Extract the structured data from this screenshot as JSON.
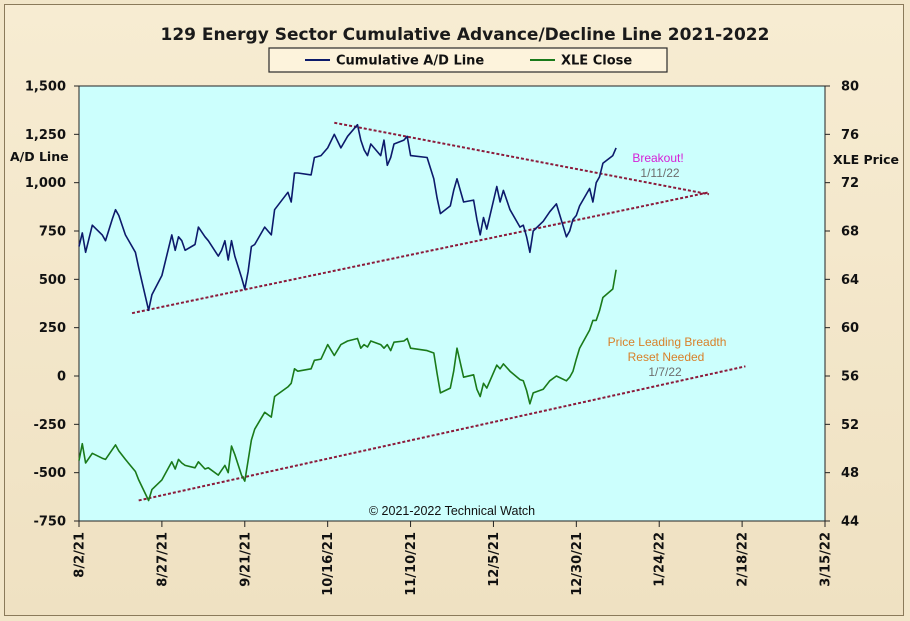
{
  "colors": {
    "plot_bg": "#ccfffd",
    "ad_line": "#0d1a6b",
    "xle_line": "#1a7a1a",
    "trend": "#8b1a3a",
    "breakout": "#d61fd6",
    "date_gray": "#6e6e6e",
    "price_leading": "#d8802a"
  },
  "chart_data": {
    "type": "line",
    "title": "129 Energy Sector Cumulative Advance/Decline Line 2021-2022",
    "ylabel": "A/D Line",
    "y2label": "XLE Price",
    "ylim": [
      -750,
      1500
    ],
    "y2lim": [
      44,
      80
    ],
    "yticks": [
      "1,500",
      "1,250",
      "1,000",
      "750",
      "500",
      "250",
      "0",
      "-250",
      "-500",
      "-750"
    ],
    "y2ticks": [
      "80",
      "76",
      "72",
      "68",
      "64",
      "60",
      "56",
      "52",
      "48",
      "44"
    ],
    "xticks": [
      "8/2/21",
      "8/27/21",
      "9/21/21",
      "10/16/21",
      "11/10/21",
      "12/5/21",
      "12/30/21",
      "1/24/22",
      "2/18/22",
      "3/15/22"
    ],
    "xlim": [
      "2021-08-02",
      "2022-03-15"
    ],
    "grid": false,
    "legend_position": "top-center",
    "copyright": "© 2021-2022  Technical Watch",
    "series": [
      {
        "name": "Cumulative A/D Line",
        "axis": "left",
        "points": [
          [
            "2021-08-02",
            670
          ],
          [
            "2021-08-03",
            740
          ],
          [
            "2021-08-04",
            640
          ],
          [
            "2021-08-06",
            780
          ],
          [
            "2021-08-09",
            730
          ],
          [
            "2021-08-10",
            700
          ],
          [
            "2021-08-12",
            810
          ],
          [
            "2021-08-13",
            860
          ],
          [
            "2021-08-14",
            830
          ],
          [
            "2021-08-16",
            730
          ],
          [
            "2021-08-19",
            640
          ],
          [
            "2021-08-20",
            560
          ],
          [
            "2021-08-23",
            340
          ],
          [
            "2021-08-24",
            420
          ],
          [
            "2021-08-27",
            520
          ],
          [
            "2021-08-30",
            730
          ],
          [
            "2021-08-31",
            650
          ],
          [
            "2021-09-01",
            720
          ],
          [
            "2021-09-02",
            700
          ],
          [
            "2021-09-03",
            650
          ],
          [
            "2021-09-06",
            680
          ],
          [
            "2021-09-07",
            770
          ],
          [
            "2021-09-09",
            720
          ],
          [
            "2021-09-10",
            700
          ],
          [
            "2021-09-13",
            620
          ],
          [
            "2021-09-14",
            650
          ],
          [
            "2021-09-15",
            700
          ],
          [
            "2021-09-16",
            600
          ],
          [
            "2021-09-17",
            700
          ],
          [
            "2021-09-18",
            620
          ],
          [
            "2021-09-20",
            510
          ],
          [
            "2021-09-21",
            450
          ],
          [
            "2021-09-22",
            540
          ],
          [
            "2021-09-23",
            670
          ],
          [
            "2021-09-24",
            680
          ],
          [
            "2021-09-27",
            770
          ],
          [
            "2021-09-29",
            730
          ],
          [
            "2021-09-30",
            860
          ],
          [
            "2021-10-04",
            950
          ],
          [
            "2021-10-05",
            900
          ],
          [
            "2021-10-06",
            1050
          ],
          [
            "2021-10-07",
            1050
          ],
          [
            "2021-10-11",
            1040
          ],
          [
            "2021-10-12",
            1130
          ],
          [
            "2021-10-14",
            1140
          ],
          [
            "2021-10-16",
            1180
          ],
          [
            "2021-10-18",
            1250
          ],
          [
            "2021-10-20",
            1180
          ],
          [
            "2021-10-22",
            1240
          ],
          [
            "2021-10-25",
            1300
          ],
          [
            "2021-10-26",
            1220
          ],
          [
            "2021-10-27",
            1170
          ],
          [
            "2021-10-28",
            1140
          ],
          [
            "2021-10-29",
            1200
          ],
          [
            "2021-11-01",
            1140
          ],
          [
            "2021-11-02",
            1220
          ],
          [
            "2021-11-03",
            1090
          ],
          [
            "2021-11-04",
            1130
          ],
          [
            "2021-11-05",
            1200
          ],
          [
            "2021-11-08",
            1220
          ],
          [
            "2021-11-09",
            1240
          ],
          [
            "2021-11-10",
            1140
          ],
          [
            "2021-11-15",
            1130
          ],
          [
            "2021-11-17",
            1020
          ],
          [
            "2021-11-18",
            920
          ],
          [
            "2021-11-19",
            840
          ],
          [
            "2021-11-22",
            880
          ],
          [
            "2021-11-23",
            960
          ],
          [
            "2021-11-24",
            1020
          ],
          [
            "2021-11-26",
            900
          ],
          [
            "2021-11-29",
            910
          ],
          [
            "2021-11-30",
            810
          ],
          [
            "2021-12-01",
            730
          ],
          [
            "2021-12-02",
            820
          ],
          [
            "2021-12-03",
            760
          ],
          [
            "2021-12-06",
            980
          ],
          [
            "2021-12-07",
            900
          ],
          [
            "2021-12-08",
            960
          ],
          [
            "2021-12-10",
            860
          ],
          [
            "2021-12-13",
            770
          ],
          [
            "2021-12-14",
            780
          ],
          [
            "2021-12-15",
            720
          ],
          [
            "2021-12-16",
            640
          ],
          [
            "2021-12-17",
            750
          ],
          [
            "2021-12-20",
            800
          ],
          [
            "2021-12-22",
            850
          ],
          [
            "2021-12-24",
            890
          ],
          [
            "2021-12-27",
            720
          ],
          [
            "2021-12-28",
            750
          ],
          [
            "2021-12-29",
            810
          ],
          [
            "2021-12-30",
            830
          ],
          [
            "2021-12-31",
            880
          ],
          [
            "2022-01-03",
            970
          ],
          [
            "2022-01-04",
            900
          ],
          [
            "2022-01-05",
            1000
          ],
          [
            "2022-01-06",
            1030
          ],
          [
            "2022-01-07",
            1100
          ],
          [
            "2022-01-10",
            1140
          ],
          [
            "2022-01-11",
            1180
          ]
        ]
      },
      {
        "name": "XLE Close",
        "axis": "right",
        "points": [
          [
            "2021-08-02",
            49.0
          ],
          [
            "2021-08-03",
            50.4
          ],
          [
            "2021-08-04",
            48.8
          ],
          [
            "2021-08-06",
            49.6
          ],
          [
            "2021-08-09",
            49.2
          ],
          [
            "2021-08-10",
            49.1
          ],
          [
            "2021-08-12",
            49.9
          ],
          [
            "2021-08-13",
            50.3
          ],
          [
            "2021-08-14",
            49.8
          ],
          [
            "2021-08-16",
            49.1
          ],
          [
            "2021-08-19",
            48.1
          ],
          [
            "2021-08-20",
            47.4
          ],
          [
            "2021-08-23",
            45.7
          ],
          [
            "2021-08-24",
            46.6
          ],
          [
            "2021-08-27",
            47.4
          ],
          [
            "2021-08-30",
            48.9
          ],
          [
            "2021-08-31",
            48.3
          ],
          [
            "2021-09-01",
            49.1
          ],
          [
            "2021-09-02",
            48.8
          ],
          [
            "2021-09-03",
            48.6
          ],
          [
            "2021-09-06",
            48.4
          ],
          [
            "2021-09-07",
            48.9
          ],
          [
            "2021-09-09",
            48.3
          ],
          [
            "2021-09-10",
            48.4
          ],
          [
            "2021-09-13",
            47.8
          ],
          [
            "2021-09-14",
            48.2
          ],
          [
            "2021-09-15",
            48.6
          ],
          [
            "2021-09-16",
            48.0
          ],
          [
            "2021-09-17",
            50.2
          ],
          [
            "2021-09-18",
            49.5
          ],
          [
            "2021-09-20",
            47.8
          ],
          [
            "2021-09-21",
            47.3
          ],
          [
            "2021-09-22",
            49.0
          ],
          [
            "2021-09-23",
            50.7
          ],
          [
            "2021-09-24",
            51.6
          ],
          [
            "2021-09-27",
            53.0
          ],
          [
            "2021-09-29",
            52.6
          ],
          [
            "2021-09-30",
            54.3
          ],
          [
            "2021-10-04",
            55.1
          ],
          [
            "2021-10-05",
            55.4
          ],
          [
            "2021-10-06",
            56.6
          ],
          [
            "2021-10-07",
            56.4
          ],
          [
            "2021-10-11",
            56.6
          ],
          [
            "2021-10-12",
            57.3
          ],
          [
            "2021-10-14",
            57.4
          ],
          [
            "2021-10-16",
            58.6
          ],
          [
            "2021-10-18",
            57.7
          ],
          [
            "2021-10-20",
            58.6
          ],
          [
            "2021-10-22",
            58.9
          ],
          [
            "2021-10-25",
            59.1
          ],
          [
            "2021-10-26",
            58.3
          ],
          [
            "2021-10-27",
            58.6
          ],
          [
            "2021-10-28",
            58.4
          ],
          [
            "2021-10-29",
            58.9
          ],
          [
            "2021-11-01",
            58.6
          ],
          [
            "2021-11-02",
            58.3
          ],
          [
            "2021-11-03",
            58.6
          ],
          [
            "2021-11-04",
            58.1
          ],
          [
            "2021-11-05",
            58.8
          ],
          [
            "2021-11-08",
            58.9
          ],
          [
            "2021-11-09",
            59.1
          ],
          [
            "2021-11-10",
            58.3
          ],
          [
            "2021-11-15",
            58.1
          ],
          [
            "2021-11-17",
            57.9
          ],
          [
            "2021-11-18",
            56.2
          ],
          [
            "2021-11-19",
            54.6
          ],
          [
            "2021-11-22",
            55.0
          ],
          [
            "2021-11-23",
            56.4
          ],
          [
            "2021-11-24",
            58.3
          ],
          [
            "2021-11-26",
            55.9
          ],
          [
            "2021-11-29",
            56.1
          ],
          [
            "2021-11-30",
            54.9
          ],
          [
            "2021-12-01",
            54.3
          ],
          [
            "2021-12-02",
            55.4
          ],
          [
            "2021-12-03",
            55.0
          ],
          [
            "2021-12-06",
            56.9
          ],
          [
            "2021-12-07",
            56.6
          ],
          [
            "2021-12-08",
            57.0
          ],
          [
            "2021-12-10",
            56.4
          ],
          [
            "2021-12-13",
            55.7
          ],
          [
            "2021-12-14",
            55.6
          ],
          [
            "2021-12-15",
            54.8
          ],
          [
            "2021-12-16",
            53.7
          ],
          [
            "2021-12-17",
            54.6
          ],
          [
            "2021-12-20",
            54.9
          ],
          [
            "2021-12-22",
            55.6
          ],
          [
            "2021-12-24",
            56.0
          ],
          [
            "2021-12-27",
            55.6
          ],
          [
            "2021-12-28",
            55.9
          ],
          [
            "2021-12-29",
            56.4
          ],
          [
            "2021-12-30",
            57.4
          ],
          [
            "2021-12-31",
            58.3
          ],
          [
            "2022-01-03",
            59.8
          ],
          [
            "2022-01-04",
            60.6
          ],
          [
            "2022-01-05",
            60.6
          ],
          [
            "2022-01-06",
            61.4
          ],
          [
            "2022-01-07",
            62.5
          ],
          [
            "2022-01-10",
            63.2
          ],
          [
            "2022-01-11",
            64.8
          ]
        ]
      }
    ],
    "trendlines": [
      {
        "name": "ad-resistance",
        "axis": "left",
        "from": [
          "2021-10-18",
          1310
        ],
        "to": [
          "2022-02-08",
          940
        ]
      },
      {
        "name": "ad-support",
        "axis": "left",
        "from": [
          "2021-08-18",
          325
        ],
        "to": [
          "2022-02-08",
          950
        ]
      },
      {
        "name": "xle-support",
        "axis": "right",
        "from": [
          "2021-08-20",
          45.7
        ],
        "to": [
          "2022-02-19",
          56.8
        ]
      }
    ],
    "annotations": [
      {
        "name": "breakout-annotation",
        "lines": [
          {
            "text": "Breakout!",
            "color": "breakout"
          },
          {
            "text": "1/11/22",
            "color": "date_gray"
          }
        ]
      },
      {
        "name": "price-leading-annotation",
        "lines": [
          {
            "text": "Price Leading Breadth",
            "color": "price_leading"
          },
          {
            "text": "Reset Needed",
            "color": "price_leading"
          },
          {
            "text": "1/7/22",
            "color": "date_gray"
          }
        ]
      }
    ]
  }
}
